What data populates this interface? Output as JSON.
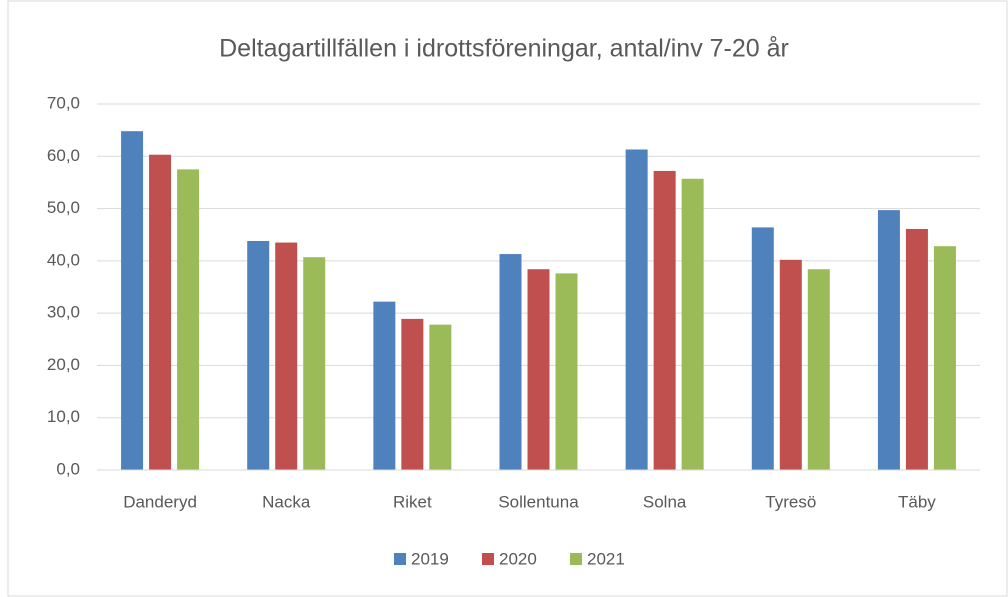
{
  "chart_data": {
    "type": "bar",
    "title": "Deltagartillfällen i idrottsföreningar, antal/inv 7-20 år",
    "categories": [
      "Danderyd",
      "Nacka",
      "Riket",
      "Sollentuna",
      "Solna",
      "Tyresö",
      "Täby"
    ],
    "series": [
      {
        "name": "2019",
        "color": "#4f81bd",
        "values": [
          64.8,
          43.8,
          32.2,
          41.3,
          61.3,
          46.4,
          49.7
        ]
      },
      {
        "name": "2020",
        "color": "#c0504d",
        "values": [
          60.3,
          43.5,
          28.9,
          38.4,
          57.2,
          40.2,
          46.1
        ]
      },
      {
        "name": "2021",
        "color": "#9bbb59",
        "values": [
          57.5,
          40.7,
          27.8,
          37.6,
          55.7,
          38.4,
          42.8
        ]
      }
    ],
    "ylim": [
      0,
      70
    ],
    "yticks": [
      {
        "value": 0,
        "label": "0,0"
      },
      {
        "value": 10,
        "label": "10,0"
      },
      {
        "value": 20,
        "label": "20,0"
      },
      {
        "value": 30,
        "label": "30,0"
      },
      {
        "value": 40,
        "label": "40,0"
      },
      {
        "value": 50,
        "label": "50,0"
      },
      {
        "value": 60,
        "label": "60,0"
      },
      {
        "value": 70,
        "label": "70,0"
      }
    ],
    "grid": true,
    "legend": "bottom"
  }
}
